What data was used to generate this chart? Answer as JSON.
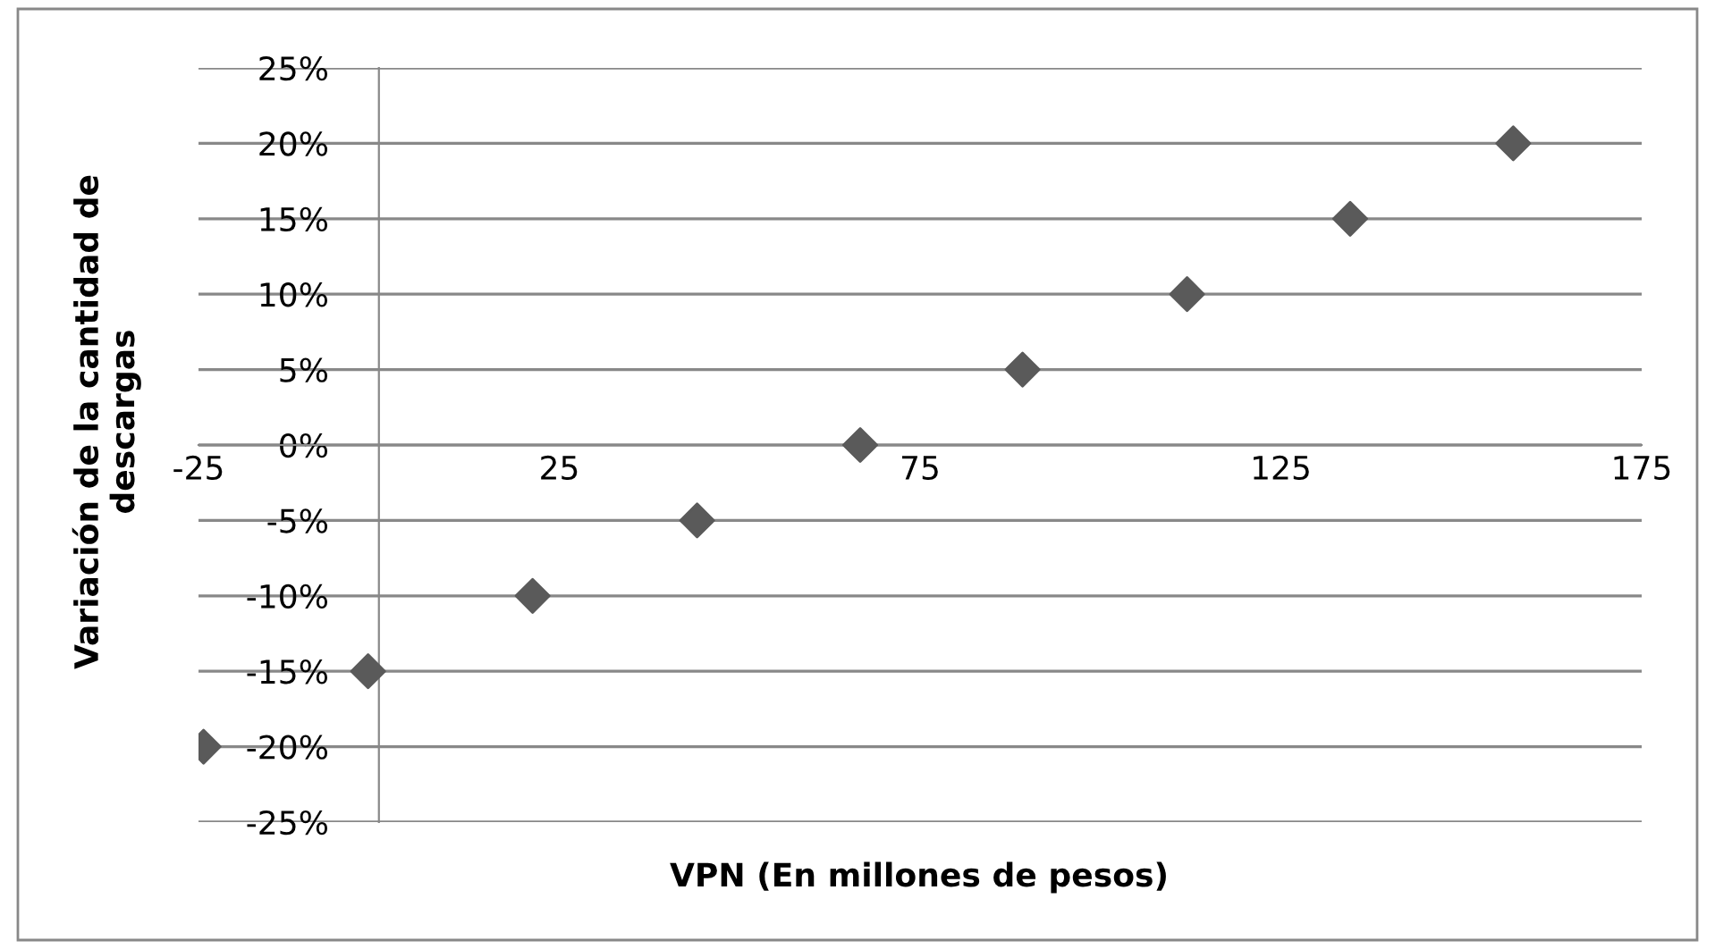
{
  "chart_data": {
    "type": "scatter",
    "xlabel": "VPN (En millones de pesos)",
    "ylabel": "Variación de la cantidad de\ndescargas",
    "x": [
      -24.3,
      -1.5,
      21.3,
      44.1,
      66.7,
      89.2,
      112,
      134.6,
      157.2
    ],
    "series": [
      {
        "color": "#5a5a5a",
        "values": [
          -20,
          -15,
          -10,
          -5,
          0,
          5,
          10,
          15,
          20
        ]
      }
    ],
    "xlim": [
      -25,
      175
    ],
    "xticks": [
      -25,
      25,
      75,
      125,
      175
    ],
    "ylim": [
      -25,
      25
    ],
    "yticks": [
      {
        "value": -25,
        "label": "-25%"
      },
      {
        "value": -20,
        "label": "-20%"
      },
      {
        "value": -15,
        "label": "-15%"
      },
      {
        "value": -10,
        "label": "-10%"
      },
      {
        "value": -5,
        "label": "-5%"
      },
      {
        "value": 0,
        "label": "0%"
      },
      {
        "value": 5,
        "label": "5%"
      },
      {
        "value": 10,
        "label": "10%"
      },
      {
        "value": 15,
        "label": "15%"
      },
      {
        "value": 20,
        "label": "20%"
      },
      {
        "value": 25,
        "label": "25%"
      }
    ],
    "grid": "y",
    "marker": "diamond",
    "legend": false
  }
}
